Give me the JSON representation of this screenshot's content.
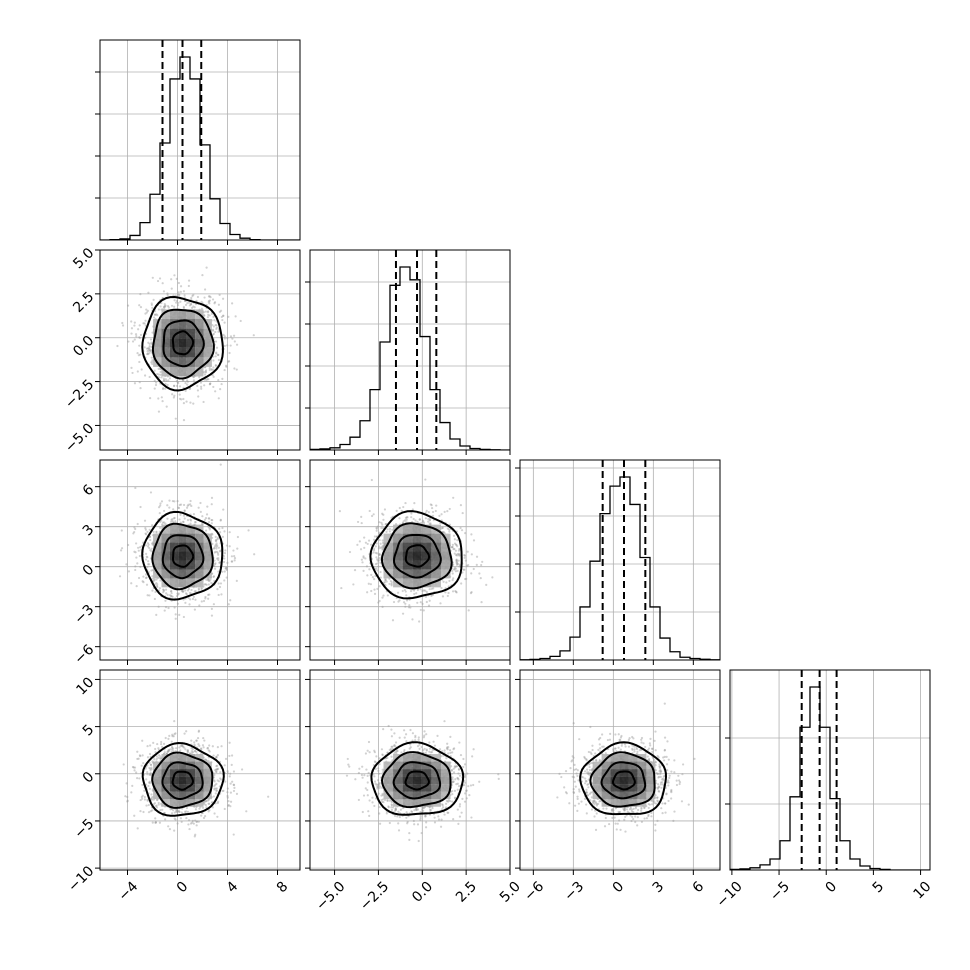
{
  "chart_data": {
    "type": "corner",
    "title": "",
    "n_params": 4,
    "labels": [
      "",
      "",
      "",
      ""
    ],
    "grid": true,
    "colors": {
      "line": "#000000",
      "scatter": "#9a9a9a",
      "grid": "#b0b0b0",
      "background": "#ffffff"
    },
    "params": [
      {
        "range": [
          -6.2,
          9.8
        ],
        "ticks": [
          -4,
          0,
          4,
          8
        ],
        "tick_labels": [
          "−4",
          "0",
          "4",
          "8"
        ],
        "mean": 0.4,
        "std": 1.6,
        "quantiles": [
          -1.2,
          0.4,
          1.9
        ],
        "hist": {
          "edges": [
            -6.2,
            -5.4,
            -4.6,
            -3.8,
            -3.0,
            -2.2,
            -1.4,
            -0.6,
            0.2,
            1.0,
            1.8,
            2.6,
            3.4,
            4.2,
            5.0,
            5.8,
            6.6,
            7.4,
            8.2,
            9.0,
            9.8
          ],
          "counts": [
            0,
            2,
            6,
            25,
            95,
            250,
            530,
            880,
            1000,
            880,
            520,
            225,
            90,
            30,
            10,
            2,
            0,
            0,
            0,
            0
          ]
        }
      },
      {
        "range": [
          -6.4,
          5.0
        ],
        "ticks": [
          -5.0,
          -2.5,
          0.0,
          2.5,
          5.0
        ],
        "tick_labels": [
          "−5.0",
          "−2.5",
          "0.0",
          "2.5",
          "5.0"
        ],
        "mean": -0.3,
        "std": 1.3,
        "quantiles": [
          -1.5,
          -0.3,
          0.8
        ],
        "hist": {
          "edges": [
            -6.4,
            -5.83,
            -5.26,
            -4.69,
            -4.12,
            -3.55,
            -2.98,
            -2.41,
            -1.84,
            -1.27,
            -0.7,
            -0.13,
            0.44,
            1.01,
            1.58,
            2.15,
            2.72,
            3.29,
            3.86,
            4.43,
            5.0
          ],
          "counts": [
            3,
            6,
            12,
            30,
            70,
            160,
            330,
            590,
            900,
            1000,
            930,
            620,
            330,
            150,
            60,
            22,
            8,
            3,
            1,
            0
          ]
        }
      },
      {
        "range": [
          -7.0,
          8.0
        ],
        "ticks": [
          -6,
          -3,
          0,
          3,
          6
        ],
        "tick_labels": [
          "−6",
          "−3",
          "0",
          "3",
          "6"
        ],
        "mean": 0.8,
        "std": 1.6,
        "quantiles": [
          -0.8,
          0.8,
          2.4
        ],
        "hist": {
          "edges": [
            -7.0,
            -6.25,
            -5.5,
            -4.75,
            -4.0,
            -3.25,
            -2.5,
            -1.75,
            -1.0,
            -0.25,
            0.5,
            1.25,
            2.0,
            2.75,
            3.5,
            4.25,
            5.0,
            5.75,
            6.5,
            7.25,
            8.0
          ],
          "counts": [
            1,
            3,
            8,
            20,
            50,
            125,
            290,
            540,
            800,
            950,
            1000,
            850,
            560,
            290,
            120,
            45,
            15,
            8,
            4,
            1
          ]
        }
      },
      {
        "range": [
          -10.2,
          11.0
        ],
        "ticks": [
          -10,
          -5,
          0,
          5,
          10
        ],
        "tick_labels": [
          "−10",
          "−5",
          "0",
          "5",
          "10"
        ],
        "mean": -0.7,
        "std": 1.9,
        "quantiles": [
          -2.6,
          -0.7,
          1.1
        ],
        "hist": {
          "edges": [
            -10.2,
            -9.14,
            -8.08,
            -7.02,
            -5.96,
            -4.9,
            -3.84,
            -2.78,
            -1.72,
            -0.66,
            0.4,
            1.46,
            2.52,
            3.58,
            4.64,
            5.7,
            6.76,
            7.82,
            8.88,
            9.94,
            11.0
          ],
          "counts": [
            3,
            6,
            12,
            28,
            60,
            160,
            400,
            780,
            1000,
            780,
            390,
            160,
            60,
            22,
            8,
            3,
            0,
            0,
            0,
            0
          ]
        }
      }
    ],
    "marginal_ticks_shown": [
      {
        "fraction_ticks": [
          0.21,
          0.42,
          0.63,
          0.84
        ]
      },
      {
        "fraction_ticks": [
          0.21,
          0.42,
          0.63,
          0.84
        ]
      },
      {
        "fraction_ticks": [
          0.24,
          0.48,
          0.72,
          0.96
        ]
      },
      {
        "fraction_ticks": [
          0.33,
          0.66
        ]
      }
    ],
    "scatter_samples_per_panel": 1400,
    "contour_levels_sigma": [
      0.5,
      1.0,
      1.5,
      2.0
    ]
  }
}
